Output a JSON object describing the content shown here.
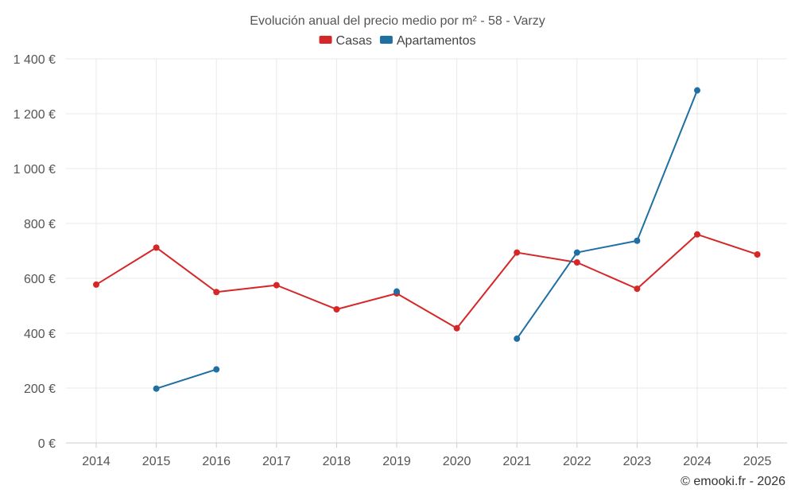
{
  "chart_data": {
    "type": "line",
    "title": "Evolución anual del precio medio por m² - 58 - Varzy",
    "xlabel": "",
    "ylabel": "",
    "categories": [
      "2014",
      "2015",
      "2016",
      "2017",
      "2018",
      "2019",
      "2020",
      "2021",
      "2022",
      "2023",
      "2024",
      "2025"
    ],
    "ylim": [
      0,
      1400
    ],
    "yticks": [
      0,
      200,
      400,
      600,
      800,
      1000,
      1200,
      1400
    ],
    "ytick_labels": [
      "0 €",
      "200 €",
      "400 €",
      "600 €",
      "800 €",
      "1 000 €",
      "1 200 €",
      "1 400 €"
    ],
    "grid": true,
    "legend_position": "top-center",
    "series": [
      {
        "name": "Casas",
        "color": "#d62728",
        "values": [
          577,
          712,
          550,
          575,
          487,
          545,
          418,
          694,
          658,
          562,
          760,
          687
        ]
      },
      {
        "name": "Apartamentos",
        "color": "#1f6fa3",
        "values": [
          null,
          198,
          268,
          null,
          null,
          552,
          null,
          380,
          694,
          737,
          1285,
          null
        ]
      }
    ]
  },
  "credit": "© emooki.fr - 2026"
}
